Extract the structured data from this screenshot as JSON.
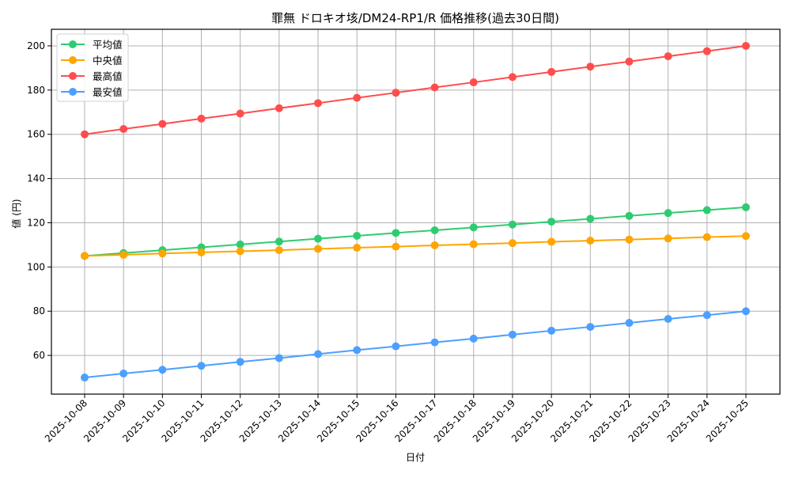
{
  "chart_data": {
    "type": "line",
    "title": "罪無 ドロキオ垓/DM24-RP1/R 価格推移(過去30日間)",
    "xlabel": "日付",
    "ylabel": "値 (円)",
    "categories": [
      "2025-10-08",
      "2025-10-09",
      "2025-10-10",
      "2025-10-11",
      "2025-10-12",
      "2025-10-13",
      "2025-10-14",
      "2025-10-15",
      "2025-10-16",
      "2025-10-17",
      "2025-10-18",
      "2025-10-19",
      "2025-10-20",
      "2025-10-21",
      "2025-10-22",
      "2025-10-23",
      "2025-10-24",
      "2025-10-25"
    ],
    "series": [
      {
        "name": "平均値",
        "color": "#2ecc71",
        "values": [
          105.0,
          106.3,
          107.6,
          108.9,
          110.2,
          111.5,
          112.8,
          114.1,
          115.4,
          116.6,
          117.9,
          119.2,
          120.5,
          121.8,
          123.1,
          124.4,
          125.7,
          127.0
        ]
      },
      {
        "name": "中央値",
        "color": "#ffa500",
        "values": [
          105.0,
          105.5,
          106.1,
          106.6,
          107.1,
          107.6,
          108.2,
          108.7,
          109.2,
          109.8,
          110.3,
          110.8,
          111.4,
          111.9,
          112.4,
          112.9,
          113.5,
          114.0
        ]
      },
      {
        "name": "最高値",
        "color": "#ff4d4d",
        "values": [
          160.0,
          162.4,
          164.7,
          167.1,
          169.4,
          171.8,
          174.1,
          176.5,
          178.8,
          181.2,
          183.5,
          185.9,
          188.2,
          190.6,
          192.9,
          195.3,
          197.6,
          200.0
        ]
      },
      {
        "name": "最安値",
        "color": "#4d9fff",
        "values": [
          50.0,
          51.8,
          53.5,
          55.3,
          57.1,
          58.8,
          60.6,
          62.4,
          64.1,
          65.9,
          67.6,
          69.4,
          71.2,
          72.9,
          74.7,
          76.5,
          78.2,
          80.0
        ]
      }
    ],
    "yticks": [
      60,
      80,
      100,
      120,
      140,
      160,
      180,
      200
    ],
    "ylim": [
      42.5,
      207.5
    ],
    "grid": true,
    "legend_position": "upper left"
  }
}
